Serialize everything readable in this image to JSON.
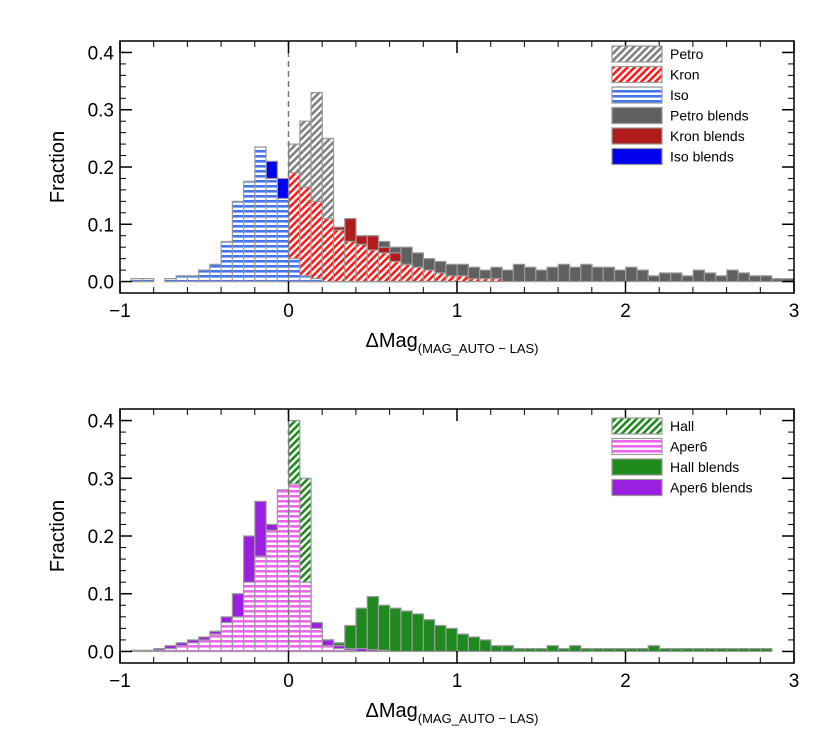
{
  "chart_data": [
    {
      "type": "histogram",
      "panel": "top",
      "xlabel_main": "ΔMag",
      "xlabel_sub": "(MAG_AUTO − LAS)",
      "ylabel": "Fraction",
      "xlim": [
        -1,
        3
      ],
      "ylim": [
        -0.02,
        0.42
      ],
      "bin_width": 0.0667,
      "bin_start": -1.0,
      "x_ticks": [
        "-1",
        "0",
        "1",
        "2",
        "3"
      ],
      "y_ticks": [
        "0.0",
        "0.1",
        "0.2",
        "0.3",
        "0.4"
      ],
      "reference_line_x": 0,
      "legend_position": "top-right",
      "series": [
        {
          "name": "Petro blends",
          "style": "solid",
          "fill": "#606060",
          "values": [
            0,
            0,
            0,
            0,
            0,
            0,
            0,
            0,
            0,
            0,
            0,
            0,
            0,
            0,
            0.005,
            0.03,
            0.09,
            0.065,
            0.07,
            0.06,
            0.06,
            0.06,
            0.08,
            0.07,
            0.06,
            0.06,
            0.05,
            0.04,
            0.035,
            0.03,
            0.03,
            0.025,
            0.02,
            0.025,
            0.02,
            0.03,
            0.025,
            0.02,
            0.025,
            0.03,
            0.025,
            0.03,
            0.025,
            0.025,
            0.02,
            0.025,
            0.02,
            0.01,
            0.015,
            0.015,
            0.01,
            0.02,
            0.015,
            0.01,
            0.02,
            0.015,
            0.01,
            0.01,
            0.005,
            0.005
          ]
        },
        {
          "name": "Kron blends",
          "style": "solid",
          "fill": "#b01c1c",
          "values": [
            0,
            0,
            0,
            0,
            0,
            0,
            0,
            0,
            0,
            0,
            0,
            0,
            0,
            0,
            0,
            0.02,
            0.07,
            0.065,
            0.07,
            0.095,
            0.11,
            0.08,
            0.08,
            0.06,
            0.05,
            0.03,
            0.02,
            0.015,
            0.01,
            0.005,
            0.005,
            0,
            0,
            0,
            0,
            0,
            0,
            0,
            0,
            0,
            0,
            0,
            0,
            0,
            0,
            0,
            0,
            0,
            0,
            0,
            0,
            0,
            0,
            0,
            0,
            0,
            0,
            0,
            0,
            0
          ]
        },
        {
          "name": "Petro",
          "style": "hatch-diagonal",
          "fill": "#808080",
          "values": [
            0,
            0,
            0,
            0,
            0,
            0,
            0,
            0,
            0,
            0,
            0,
            0,
            0,
            0,
            0,
            0.24,
            0.28,
            0.33,
            0.25,
            0.07,
            0.06,
            0.03,
            0.02,
            0.015,
            0.01,
            0.005,
            0.005,
            0,
            0,
            0,
            0,
            0,
            0,
            0,
            0,
            0,
            0,
            0,
            0,
            0,
            0,
            0,
            0,
            0,
            0,
            0,
            0,
            0,
            0,
            0,
            0,
            0,
            0,
            0,
            0,
            0,
            0,
            0,
            0,
            0
          ]
        },
        {
          "name": "Kron",
          "style": "hatch-diagonal",
          "fill": "#ff1a1a",
          "values": [
            0,
            0,
            0,
            0,
            0,
            0,
            0,
            0,
            0,
            0,
            0,
            0,
            0,
            0,
            0.02,
            0.19,
            0.165,
            0.14,
            0.11,
            0.09,
            0.07,
            0.065,
            0.055,
            0.05,
            0.035,
            0.03,
            0.025,
            0.02,
            0.015,
            0.01,
            0.01,
            0.005,
            0.005,
            0.005,
            0,
            0,
            0,
            0,
            0,
            0,
            0,
            0,
            0,
            0,
            0,
            0,
            0,
            0,
            0,
            0,
            0,
            0,
            0,
            0,
            0,
            0,
            0,
            0,
            0,
            0
          ]
        },
        {
          "name": "Iso blends",
          "style": "solid",
          "fill": "#0000ee",
          "values": [
            0,
            0.005,
            0.005,
            0,
            0.005,
            0,
            0.005,
            0.01,
            0.025,
            0.04,
            0.075,
            0.125,
            0.175,
            0.21,
            0.18,
            0.03,
            0.005,
            0.005,
            0,
            0,
            0,
            0,
            0,
            0,
            0,
            0,
            0,
            0,
            0,
            0,
            0,
            0,
            0,
            0,
            0,
            0,
            0,
            0,
            0,
            0,
            0,
            0,
            0,
            0,
            0,
            0,
            0,
            0,
            0,
            0,
            0,
            0,
            0,
            0,
            0,
            0,
            0,
            0,
            0,
            0
          ]
        },
        {
          "name": "Iso",
          "style": "hatch-horizontal",
          "fill": "#4477ee",
          "values": [
            0,
            0.005,
            0.005,
            0,
            0.005,
            0.01,
            0.01,
            0.02,
            0.03,
            0.07,
            0.14,
            0.175,
            0.235,
            0.18,
            0.145,
            0.04,
            0.01,
            0.005,
            0,
            0,
            0,
            0,
            0,
            0,
            0,
            0,
            0,
            0,
            0,
            0,
            0,
            0,
            0,
            0,
            0,
            0,
            0,
            0,
            0,
            0,
            0,
            0,
            0,
            0,
            0,
            0,
            0,
            0,
            0,
            0,
            0,
            0,
            0,
            0,
            0,
            0,
            0,
            0,
            0,
            0
          ]
        }
      ],
      "legend": [
        {
          "name": "Petro",
          "style": "hatch-diagonal",
          "fill": "#808080"
        },
        {
          "name": "Kron",
          "style": "hatch-diagonal",
          "fill": "#ff1a1a"
        },
        {
          "name": "Iso",
          "style": "hatch-horizontal",
          "fill": "#4477ee"
        },
        {
          "name": "Petro blends",
          "style": "solid",
          "fill": "#606060"
        },
        {
          "name": "Kron blends",
          "style": "solid",
          "fill": "#b01c1c"
        },
        {
          "name": "Iso blends",
          "style": "solid",
          "fill": "#0000ee"
        }
      ]
    },
    {
      "type": "histogram",
      "panel": "bottom",
      "xlabel_main": "ΔMag",
      "xlabel_sub": "(MAG_AUTO − LAS)",
      "ylabel": "Fraction",
      "xlim": [
        -1,
        3
      ],
      "ylim": [
        -0.02,
        0.42
      ],
      "bin_width": 0.0667,
      "bin_start": -1.0,
      "x_ticks": [
        "-1",
        "0",
        "1",
        "2",
        "3"
      ],
      "y_ticks": [
        "0.0",
        "0.1",
        "0.2",
        "0.3",
        "0.4"
      ],
      "reference_line_x": 0,
      "legend_position": "top-right",
      "series": [
        {
          "name": "Hall blends",
          "style": "solid",
          "fill": "#1e8a1e",
          "values": [
            0,
            0,
            0,
            0,
            0,
            0,
            0,
            0,
            0,
            0,
            0,
            0,
            0,
            0,
            0,
            0,
            0.04,
            0.015,
            0.01,
            0.015,
            0.045,
            0.075,
            0.095,
            0.08,
            0.075,
            0.07,
            0.065,
            0.055,
            0.045,
            0.04,
            0.03,
            0.025,
            0.02,
            0.01,
            0.01,
            0.005,
            0.005,
            0.005,
            0.01,
            0.005,
            0.01,
            0.005,
            0.005,
            0.005,
            0.005,
            0.005,
            0.005,
            0.01,
            0.005,
            0.005,
            0.005,
            0.005,
            0.005,
            0.005,
            0.005,
            0.005,
            0.005,
            0.005,
            0,
            0
          ]
        },
        {
          "name": "Hall",
          "style": "hatch-diagonal",
          "fill": "#1e8a1e",
          "values": [
            0,
            0,
            0,
            0,
            0,
            0,
            0,
            0,
            0,
            0,
            0,
            0,
            0.01,
            0.05,
            0.19,
            0.4,
            0.3,
            0.04,
            0.02,
            0.01,
            0.005,
            0,
            0,
            0,
            0,
            0,
            0,
            0,
            0,
            0,
            0,
            0,
            0,
            0,
            0,
            0,
            0,
            0,
            0,
            0,
            0,
            0,
            0,
            0,
            0,
            0,
            0,
            0,
            0,
            0,
            0,
            0,
            0,
            0,
            0,
            0,
            0,
            0,
            0,
            0
          ]
        },
        {
          "name": "Aper6 blends",
          "style": "solid",
          "fill": "#9a1fe0",
          "values": [
            0,
            0.002,
            0.002,
            0.005,
            0.01,
            0.015,
            0.02,
            0.025,
            0.035,
            0.06,
            0.1,
            0.2,
            0.26,
            0.22,
            0.17,
            0.16,
            0.11,
            0.05,
            0.02,
            0.01,
            0.005,
            0.005,
            0.003,
            0.002,
            0,
            0,
            0,
            0,
            0,
            0,
            0,
            0,
            0,
            0,
            0,
            0,
            0,
            0,
            0,
            0,
            0,
            0,
            0,
            0,
            0,
            0,
            0,
            0,
            0,
            0,
            0,
            0,
            0,
            0,
            0,
            0,
            0,
            0,
            0,
            0
          ]
        },
        {
          "name": "Aper6",
          "style": "hatch-horizontal",
          "fill": "#ee66ee",
          "values": [
            0,
            0,
            0,
            0.002,
            0.005,
            0.01,
            0.015,
            0.02,
            0.03,
            0.05,
            0.06,
            0.12,
            0.165,
            0.21,
            0.28,
            0.29,
            0.12,
            0.04,
            0.01,
            0.005,
            0.002,
            0,
            0,
            0,
            0,
            0,
            0,
            0,
            0,
            0,
            0,
            0,
            0,
            0,
            0,
            0,
            0,
            0,
            0,
            0,
            0,
            0,
            0,
            0,
            0,
            0,
            0,
            0,
            0,
            0,
            0,
            0,
            0,
            0,
            0,
            0,
            0,
            0,
            0,
            0
          ]
        }
      ],
      "legend": [
        {
          "name": "Hall",
          "style": "hatch-diagonal",
          "fill": "#1e8a1e"
        },
        {
          "name": "Aper6",
          "style": "hatch-horizontal",
          "fill": "#ee66ee"
        },
        {
          "name": "Hall blends",
          "style": "solid",
          "fill": "#1e8a1e"
        },
        {
          "name": "Aper6 blends",
          "style": "solid",
          "fill": "#9a1fe0"
        }
      ]
    }
  ]
}
